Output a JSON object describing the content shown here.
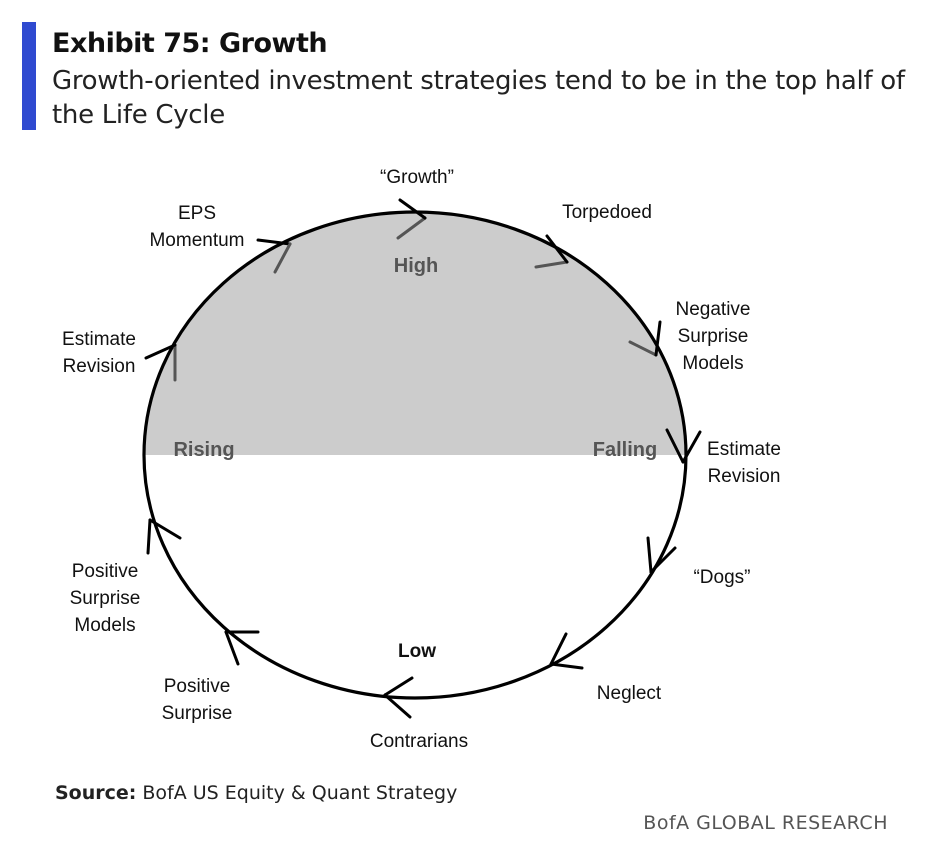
{
  "header": {
    "title": "Exhibit 75: Growth",
    "subtitle": "Growth-oriented investment strategies tend to be in the top half of the Life Cycle"
  },
  "diagram": {
    "stages": {
      "growth": "“Growth”",
      "torpedoed": "Torpedoed",
      "negative_surprise_models": "Negative Surprise Models",
      "estimate_revision_right": "Estimate Revision",
      "dogs": "“Dogs”",
      "neglect": "Neglect",
      "contrarians": "Contrarians",
      "positive_surprise": "Positive Surprise",
      "positive_surprise_models": "Positive Surprise Models",
      "estimate_revision_left": "Estimate Revision",
      "eps_momentum": "EPS Momentum"
    },
    "zones": {
      "high": "High",
      "low": "Low",
      "rising": "Rising",
      "falling": "Falling"
    },
    "colors": {
      "top_half_fill": "#cccccc",
      "outline": "#000000",
      "arrow_top": "#555555"
    }
  },
  "footer": {
    "source_label": "Source:",
    "source_text": "BofA US Equity & Quant Strategy",
    "brand": "BofA GLOBAL RESEARCH"
  }
}
